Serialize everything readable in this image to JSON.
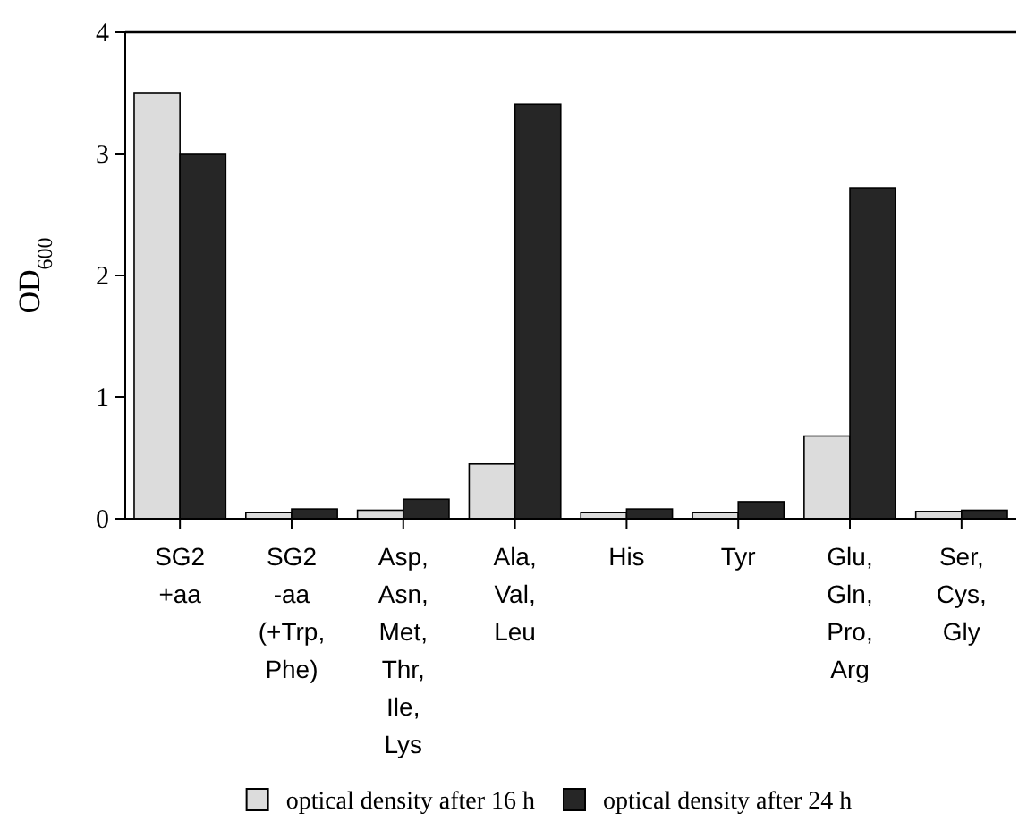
{
  "chart_data": {
    "type": "bar",
    "ylabel": "OD$_{600}$",
    "categories": [
      "SG2 +aa",
      "SG2 -aa (+Trp, Phe)",
      "Asp, Asn, Met, Thr, Ile, Lys",
      "Ala, Val, Leu",
      "His",
      "Tyr",
      "Glu, Gln, Pro, Arg",
      "Ser, Cys, Gly"
    ],
    "series": [
      {
        "name": "optical density after 16 h",
        "color": "#dcdcdc",
        "values": [
          3.5,
          0.05,
          0.07,
          0.45,
          0.05,
          0.05,
          0.68,
          0.06
        ]
      },
      {
        "name": "optical density after 24 h",
        "color": "#262626",
        "values": [
          3.0,
          0.08,
          0.16,
          3.41,
          0.08,
          0.14,
          2.72,
          0.07
        ]
      }
    ],
    "ylim": [
      0,
      4
    ],
    "yticks": [
      0,
      1,
      2,
      3,
      4
    ],
    "grid": false,
    "legend": "bottom"
  }
}
